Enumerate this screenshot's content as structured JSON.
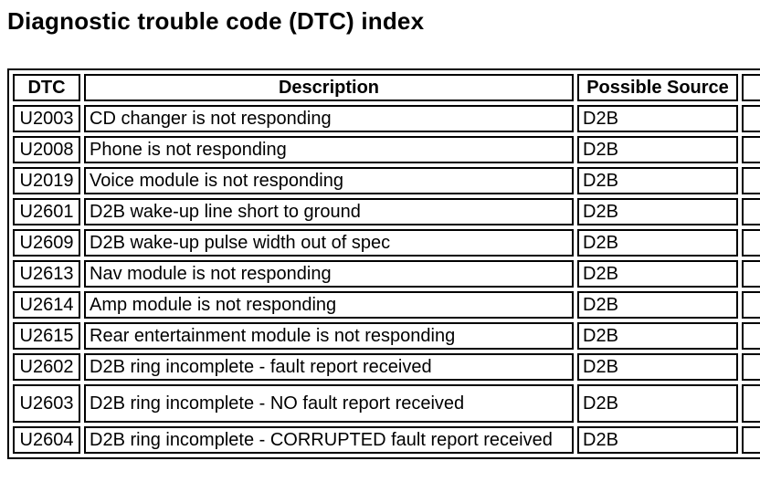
{
  "page_title": "Diagnostic trouble code (DTC) index",
  "dtc_table": {
    "headers": {
      "dtc": "DTC",
      "description": "Description",
      "source": "Possible Source"
    },
    "rows": [
      {
        "dtc": "U2003",
        "description": "CD changer is not responding",
        "source": "D2B"
      },
      {
        "dtc": "U2008",
        "description": "Phone is not responding",
        "source": "D2B"
      },
      {
        "dtc": "U2019",
        "description": "Voice module is not responding",
        "source": "D2B"
      },
      {
        "dtc": "U2601",
        "description": "D2B wake-up line short to ground",
        "source": "D2B"
      },
      {
        "dtc": "U2609",
        "description": "D2B wake-up pulse width out of spec",
        "source": "D2B"
      },
      {
        "dtc": "U2613",
        "description": "Nav module is not responding",
        "source": "D2B"
      },
      {
        "dtc": "U2614",
        "description": "Amp module is not responding",
        "source": "D2B"
      },
      {
        "dtc": "U2615",
        "description": "Rear entertainment module is not responding",
        "source": "D2B"
      },
      {
        "dtc": "U2602",
        "description": "D2B ring incomplete - fault report received",
        "source": "D2B"
      },
      {
        "dtc": "U2603",
        "description": "D2B ring incomplete - NO fault report received",
        "source": "D2B"
      },
      {
        "dtc": "U2604",
        "description": "D2B ring incomplete - CORRUPTED fault report received",
        "source": "D2B"
      }
    ],
    "colors": {
      "border": "#000000",
      "background": "#ffffff",
      "text": "#000000"
    }
  }
}
